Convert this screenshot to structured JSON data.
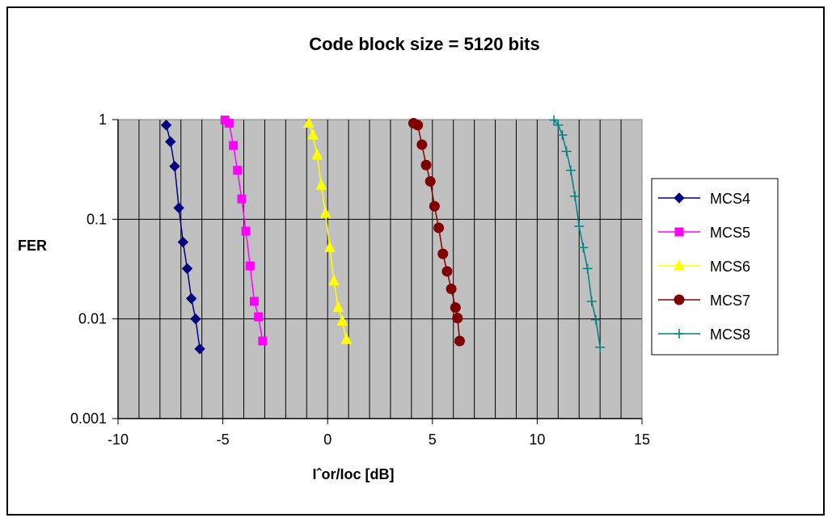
{
  "chart_data": {
    "type": "scatter",
    "title": "Code block size = 5120 bits",
    "xlabel": "Iˆor/Ioc [dB]",
    "ylabel": "FER",
    "xlim": [
      -10,
      15
    ],
    "ylim": [
      0.001,
      1
    ],
    "yscale": "log",
    "x_ticks": [
      "-10",
      "-5",
      "0",
      "5",
      "10",
      "15"
    ],
    "y_ticks": [
      "1",
      "0.1",
      "0.01",
      "0.001"
    ],
    "y_tick_values": [
      1,
      0.1,
      0.01,
      0.001
    ],
    "x_tick_values": [
      -10,
      -5,
      0,
      5,
      10,
      15
    ],
    "grid": true,
    "plot_background": "#c0c0c0",
    "legend_position": "right",
    "series": [
      {
        "name": "MCS4",
        "color": "#000080",
        "marker": "diamond",
        "points": [
          [
            -7.7,
            0.88
          ],
          [
            -7.5,
            0.6
          ],
          [
            -7.3,
            0.34
          ],
          [
            -7.1,
            0.13
          ],
          [
            -6.9,
            0.059
          ],
          [
            -6.7,
            0.032
          ],
          [
            -6.5,
            0.016
          ],
          [
            -6.3,
            0.01
          ],
          [
            -6.1,
            0.005
          ]
        ]
      },
      {
        "name": "MCS5",
        "color": "#ff00ff",
        "marker": "square",
        "points": [
          [
            -4.9,
            0.99
          ],
          [
            -4.7,
            0.92
          ],
          [
            -4.5,
            0.55
          ],
          [
            -4.3,
            0.31
          ],
          [
            -4.1,
            0.16
          ],
          [
            -3.9,
            0.076
          ],
          [
            -3.7,
            0.034
          ],
          [
            -3.5,
            0.015
          ],
          [
            -3.3,
            0.0105
          ],
          [
            -3.1,
            0.006
          ]
        ]
      },
      {
        "name": "MCS6",
        "color": "#ffff00",
        "marker": "triangle",
        "points": [
          [
            -0.9,
            0.92
          ],
          [
            -0.7,
            0.7
          ],
          [
            -0.5,
            0.44
          ],
          [
            -0.3,
            0.22
          ],
          [
            -0.1,
            0.115
          ],
          [
            0.1,
            0.052
          ],
          [
            0.3,
            0.024
          ],
          [
            0.5,
            0.013
          ],
          [
            0.7,
            0.0095
          ],
          [
            0.9,
            0.0062
          ]
        ]
      },
      {
        "name": "MCS7",
        "color": "#800000",
        "marker": "circle",
        "points": [
          [
            4.1,
            0.92
          ],
          [
            4.3,
            0.88
          ],
          [
            4.5,
            0.56
          ],
          [
            4.7,
            0.35
          ],
          [
            4.9,
            0.24
          ],
          [
            5.1,
            0.135
          ],
          [
            5.3,
            0.082
          ],
          [
            5.5,
            0.045
          ],
          [
            5.7,
            0.03
          ],
          [
            5.9,
            0.02
          ],
          [
            6.1,
            0.013
          ],
          [
            6.2,
            0.0102
          ],
          [
            6.3,
            0.006
          ]
        ]
      },
      {
        "name": "MCS8",
        "color": "#008080",
        "marker": "plus",
        "points": [
          [
            10.8,
            0.99
          ],
          [
            11.0,
            0.88
          ],
          [
            11.2,
            0.7
          ],
          [
            11.4,
            0.48
          ],
          [
            11.6,
            0.31
          ],
          [
            11.8,
            0.17
          ],
          [
            12.0,
            0.085
          ],
          [
            12.2,
            0.052
          ],
          [
            12.4,
            0.032
          ],
          [
            12.6,
            0.015
          ],
          [
            12.8,
            0.0098
          ],
          [
            13.0,
            0.0052
          ]
        ]
      }
    ]
  }
}
